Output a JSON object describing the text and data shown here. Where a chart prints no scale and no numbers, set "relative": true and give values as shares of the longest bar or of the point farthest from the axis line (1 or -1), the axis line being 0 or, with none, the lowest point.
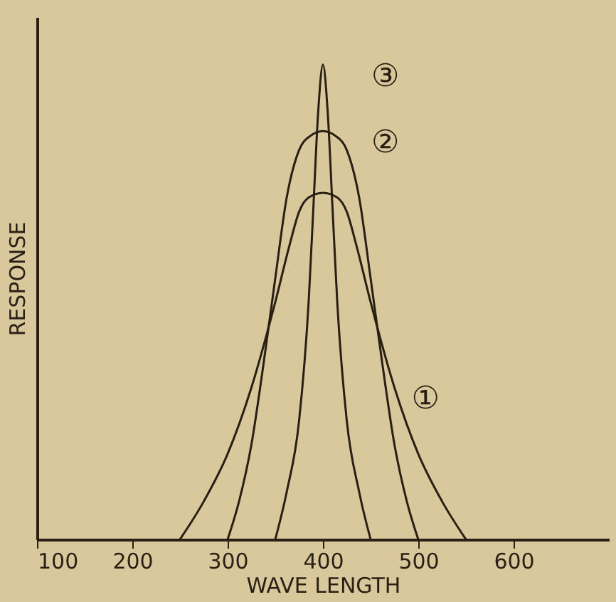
{
  "chart_data": {
    "type": "line",
    "xlabel": "WAVE LENGTH",
    "ylabel": "RESPONSE",
    "relative": true,
    "xlim": [
      100,
      700
    ],
    "xticks": [
      100,
      200,
      300,
      400,
      500,
      600
    ],
    "grid": false,
    "marker": "none",
    "line_style": "solid",
    "series": [
      {
        "name": "①",
        "color": "#2a1f14",
        "x": [
          250,
          275,
          300,
          325,
          350,
          365,
          375,
          385,
          400,
          415,
          425,
          435,
          450,
          475,
          500,
          525,
          550
        ],
        "values": [
          0,
          0.08,
          0.18,
          0.32,
          0.5,
          0.62,
          0.69,
          0.72,
          0.73,
          0.72,
          0.69,
          0.62,
          0.5,
          0.32,
          0.18,
          0.08,
          0
        ]
      },
      {
        "name": "②",
        "color": "#2a1f14",
        "x": [
          300,
          312,
          325,
          337,
          350,
          362,
          375,
          387,
          400,
          413,
          425,
          438,
          450,
          463,
          475,
          488,
          500
        ],
        "values": [
          0,
          0.08,
          0.2,
          0.36,
          0.55,
          0.72,
          0.82,
          0.85,
          0.86,
          0.85,
          0.82,
          0.72,
          0.55,
          0.36,
          0.2,
          0.08,
          0
        ]
      },
      {
        "name": "③",
        "color": "#2a1f14",
        "x": [
          350,
          362,
          375,
          385,
          390,
          395,
          400,
          405,
          410,
          415,
          425,
          438,
          450
        ],
        "values": [
          0,
          0.1,
          0.25,
          0.5,
          0.7,
          0.9,
          1,
          0.9,
          0.7,
          0.5,
          0.25,
          0.1,
          0
        ]
      }
    ]
  }
}
